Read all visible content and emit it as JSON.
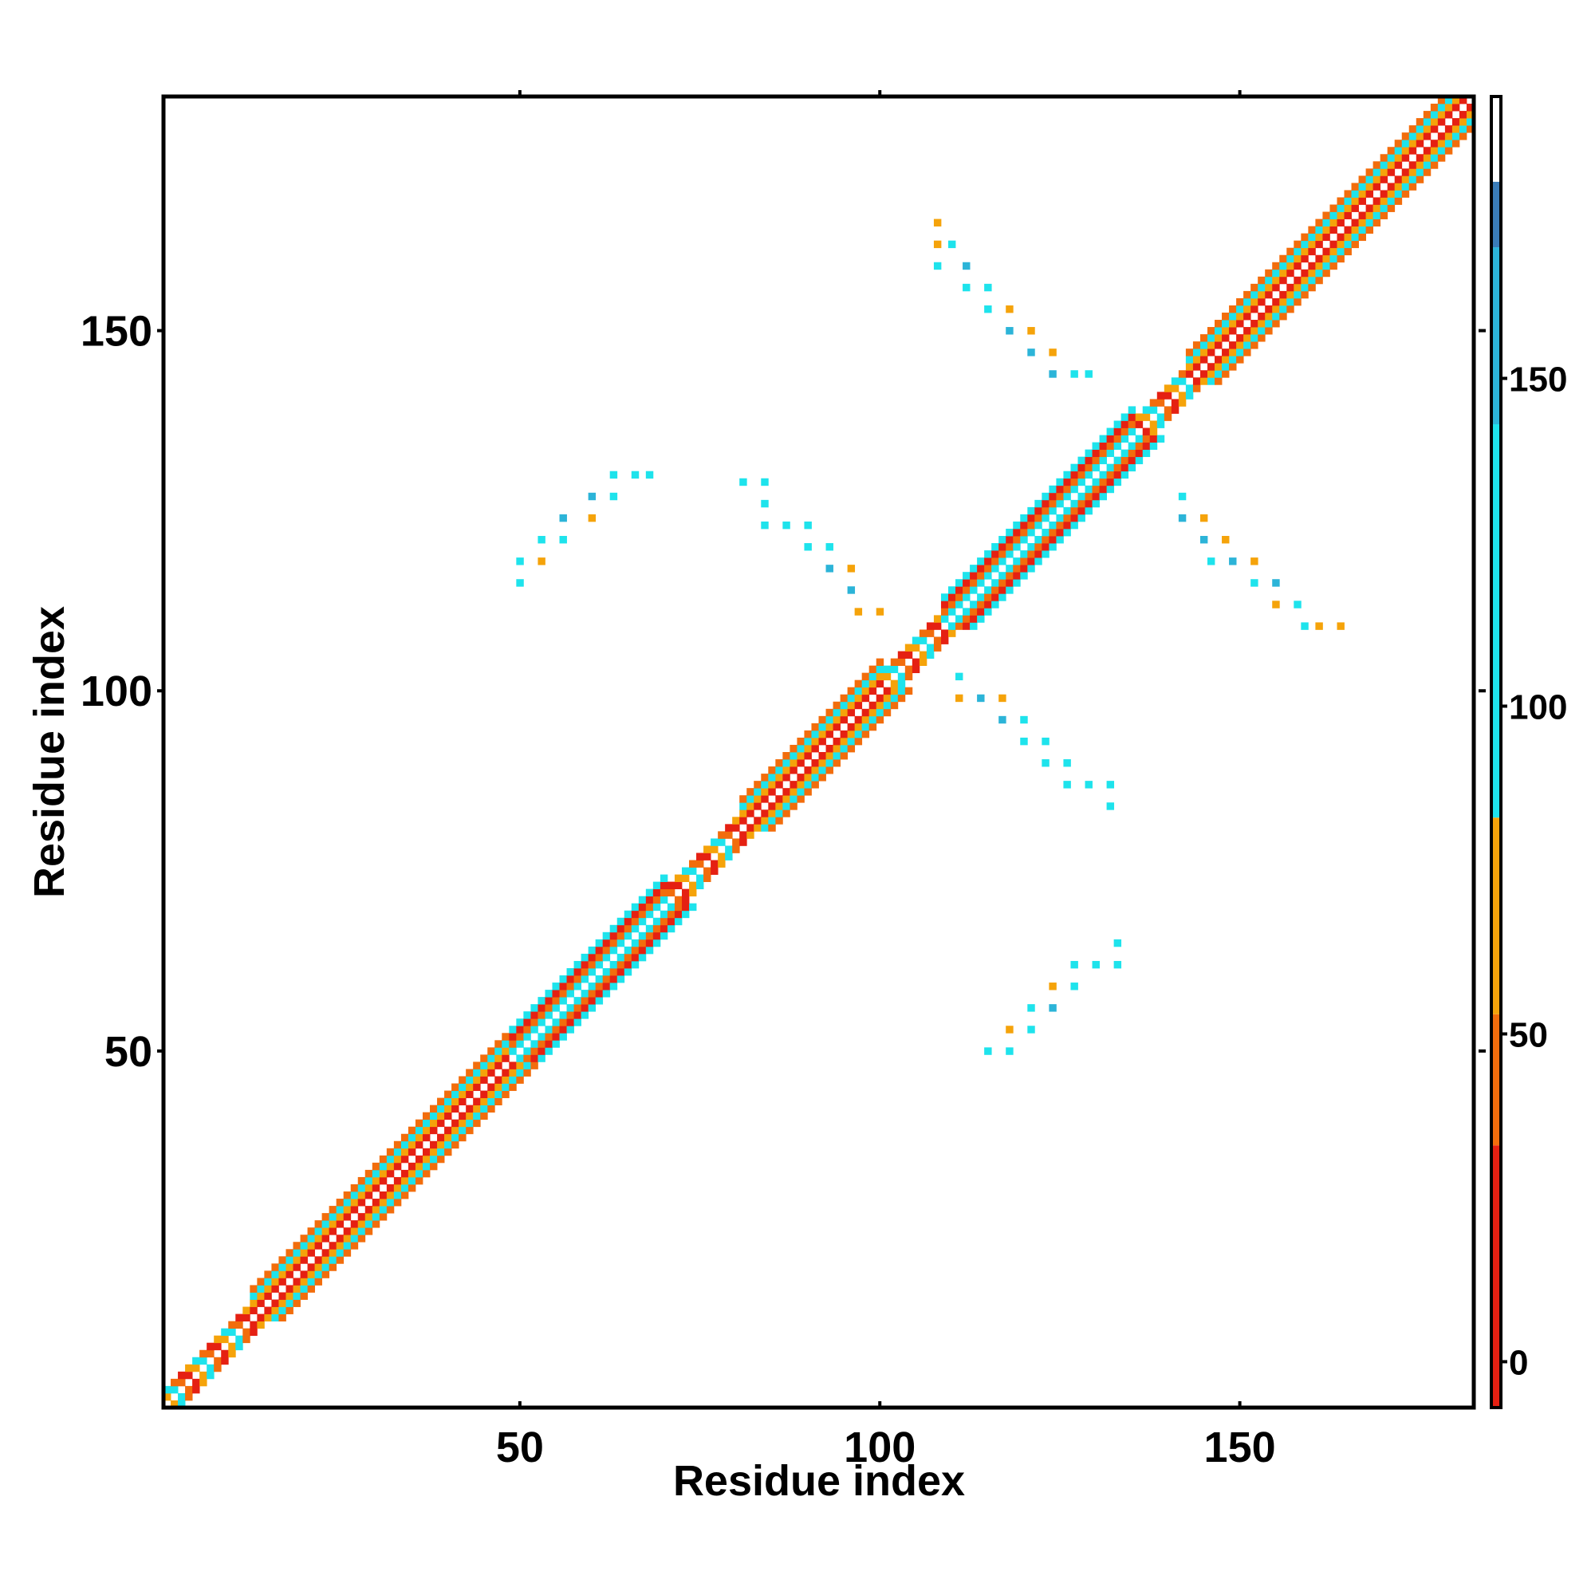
{
  "chart_data": {
    "type": "heatmap",
    "title": "",
    "xlabel": "Residue index",
    "ylabel": "Residue index",
    "xlim": [
      0.5,
      182.5
    ],
    "ylim": [
      0.5,
      182.5
    ],
    "xticks": [
      50,
      100,
      150
    ],
    "yticks": [
      50,
      100,
      150
    ],
    "colorbar": {
      "ticks": [
        0,
        50,
        100,
        150
      ],
      "range": [
        -7,
        193
      ],
      "bands": [
        {
          "from": -7,
          "to": 33,
          "color": "#e52012"
        },
        {
          "from": 33,
          "to": 53,
          "color": "#f26d0c"
        },
        {
          "from": 53,
          "to": 83,
          "color": "#f5a30a"
        },
        {
          "from": 83,
          "to": 143,
          "color": "#1ee3ec"
        },
        {
          "from": 143,
          "to": 170,
          "color": "#2cb4d8"
        },
        {
          "from": 170,
          "to": 180,
          "color": "#3a7cb8"
        },
        {
          "from": 180,
          "to": 193,
          "color": "#ffffff"
        }
      ]
    },
    "diagonal": {
      "from": 1,
      "to": 182,
      "max_offset": 4
    },
    "band_colors": {
      "helix": {
        "1": "#e52012",
        "2": "#f5a30a",
        "3": "#1ee3ec",
        "4": "#f26d0c"
      },
      "strand": {
        "1": "#1ee3ec",
        "2": "#f26d0c",
        "3": "#e52012",
        "4": "#1ee3ec"
      }
    },
    "segments": [
      {
        "from": 1,
        "to": 12,
        "kind": "coil"
      },
      {
        "from": 12,
        "to": 48,
        "kind": "helix"
      },
      {
        "from": 48,
        "to": 70,
        "kind": "strand"
      },
      {
        "from": 70,
        "to": 80,
        "kind": "coil"
      },
      {
        "from": 80,
        "to": 100,
        "kind": "helix"
      },
      {
        "from": 100,
        "to": 108,
        "kind": "coil"
      },
      {
        "from": 108,
        "to": 135,
        "kind": "strand"
      },
      {
        "from": 135,
        "to": 142,
        "kind": "coil"
      },
      {
        "from": 142,
        "to": 182,
        "kind": "helix"
      }
    ],
    "contacts": [
      {
        "x": 50,
        "y": 115,
        "v": 110
      },
      {
        "x": 50,
        "y": 118,
        "v": 110
      },
      {
        "x": 53,
        "y": 118,
        "v": 65
      },
      {
        "x": 53,
        "y": 121,
        "v": 110
      },
      {
        "x": 56,
        "y": 121,
        "v": 110
      },
      {
        "x": 56,
        "y": 124,
        "v": 150
      },
      {
        "x": 60,
        "y": 124,
        "v": 65
      },
      {
        "x": 60,
        "y": 127,
        "v": 150
      },
      {
        "x": 63,
        "y": 127,
        "v": 110
      },
      {
        "x": 63,
        "y": 130,
        "v": 110
      },
      {
        "x": 66,
        "y": 130,
        "v": 110
      },
      {
        "x": 68,
        "y": 130,
        "v": 110
      },
      {
        "x": 81,
        "y": 129,
        "v": 110
      },
      {
        "x": 84,
        "y": 129,
        "v": 110
      },
      {
        "x": 84,
        "y": 126,
        "v": 110
      },
      {
        "x": 84,
        "y": 123,
        "v": 110
      },
      {
        "x": 87,
        "y": 123,
        "v": 110
      },
      {
        "x": 90,
        "y": 123,
        "v": 110
      },
      {
        "x": 90,
        "y": 120,
        "v": 110
      },
      {
        "x": 93,
        "y": 120,
        "v": 110
      },
      {
        "x": 93,
        "y": 117,
        "v": 150
      },
      {
        "x": 96,
        "y": 117,
        "v": 65
      },
      {
        "x": 96,
        "y": 114,
        "v": 150
      },
      {
        "x": 97,
        "y": 111,
        "v": 65
      },
      {
        "x": 100,
        "y": 111,
        "v": 65
      },
      {
        "x": 108,
        "y": 165,
        "v": 65
      },
      {
        "x": 108,
        "y": 162,
        "v": 65
      },
      {
        "x": 110,
        "y": 162,
        "v": 110
      },
      {
        "x": 108,
        "y": 159,
        "v": 110
      },
      {
        "x": 112,
        "y": 159,
        "v": 150
      },
      {
        "x": 112,
        "y": 156,
        "v": 110
      },
      {
        "x": 115,
        "y": 156,
        "v": 110
      },
      {
        "x": 115,
        "y": 153,
        "v": 110
      },
      {
        "x": 118,
        "y": 153,
        "v": 65
      },
      {
        "x": 118,
        "y": 150,
        "v": 150
      },
      {
        "x": 121,
        "y": 150,
        "v": 65
      },
      {
        "x": 121,
        "y": 147,
        "v": 150
      },
      {
        "x": 124,
        "y": 147,
        "v": 65
      },
      {
        "x": 124,
        "y": 144,
        "v": 150
      },
      {
        "x": 127,
        "y": 144,
        "v": 110
      },
      {
        "x": 129,
        "y": 144,
        "v": 110
      },
      {
        "x": 142,
        "y": 127,
        "v": 110
      },
      {
        "x": 142,
        "y": 124,
        "v": 150
      },
      {
        "x": 145,
        "y": 124,
        "v": 65
      },
      {
        "x": 145,
        "y": 121,
        "v": 150
      },
      {
        "x": 148,
        "y": 121,
        "v": 65
      },
      {
        "x": 146,
        "y": 118,
        "v": 110
      },
      {
        "x": 149,
        "y": 118,
        "v": 150
      },
      {
        "x": 152,
        "y": 118,
        "v": 65
      },
      {
        "x": 152,
        "y": 115,
        "v": 110
      },
      {
        "x": 155,
        "y": 115,
        "v": 150
      },
      {
        "x": 155,
        "y": 112,
        "v": 65
      },
      {
        "x": 158,
        "y": 112,
        "v": 110
      },
      {
        "x": 159,
        "y": 109,
        "v": 110
      },
      {
        "x": 161,
        "y": 109,
        "v": 65
      },
      {
        "x": 164,
        "y": 109,
        "v": 65
      },
      {
        "x": 111,
        "y": 102,
        "v": 110
      },
      {
        "x": 111,
        "y": 99,
        "v": 65
      },
      {
        "x": 114,
        "y": 99,
        "v": 150
      },
      {
        "x": 117,
        "y": 99,
        "v": 65
      },
      {
        "x": 117,
        "y": 96,
        "v": 150
      },
      {
        "x": 120,
        "y": 96,
        "v": 110
      },
      {
        "x": 120,
        "y": 93,
        "v": 110
      },
      {
        "x": 123,
        "y": 93,
        "v": 110
      },
      {
        "x": 123,
        "y": 90,
        "v": 110
      },
      {
        "x": 126,
        "y": 90,
        "v": 110
      },
      {
        "x": 126,
        "y": 87,
        "v": 110
      },
      {
        "x": 129,
        "y": 87,
        "v": 110
      },
      {
        "x": 132,
        "y": 87,
        "v": 110
      },
      {
        "x": 132,
        "y": 84,
        "v": 110
      },
      {
        "x": 115,
        "y": 50,
        "v": 110
      },
      {
        "x": 118,
        "y": 50,
        "v": 110
      },
      {
        "x": 118,
        "y": 53,
        "v": 65
      },
      {
        "x": 121,
        "y": 53,
        "v": 110
      },
      {
        "x": 121,
        "y": 56,
        "v": 110
      },
      {
        "x": 124,
        "y": 56,
        "v": 150
      },
      {
        "x": 124,
        "y": 59,
        "v": 65
      },
      {
        "x": 127,
        "y": 59,
        "v": 110
      },
      {
        "x": 127,
        "y": 62,
        "v": 110
      },
      {
        "x": 130,
        "y": 62,
        "v": 110
      },
      {
        "x": 133,
        "y": 62,
        "v": 110
      },
      {
        "x": 133,
        "y": 65,
        "v": 110
      }
    ]
  }
}
